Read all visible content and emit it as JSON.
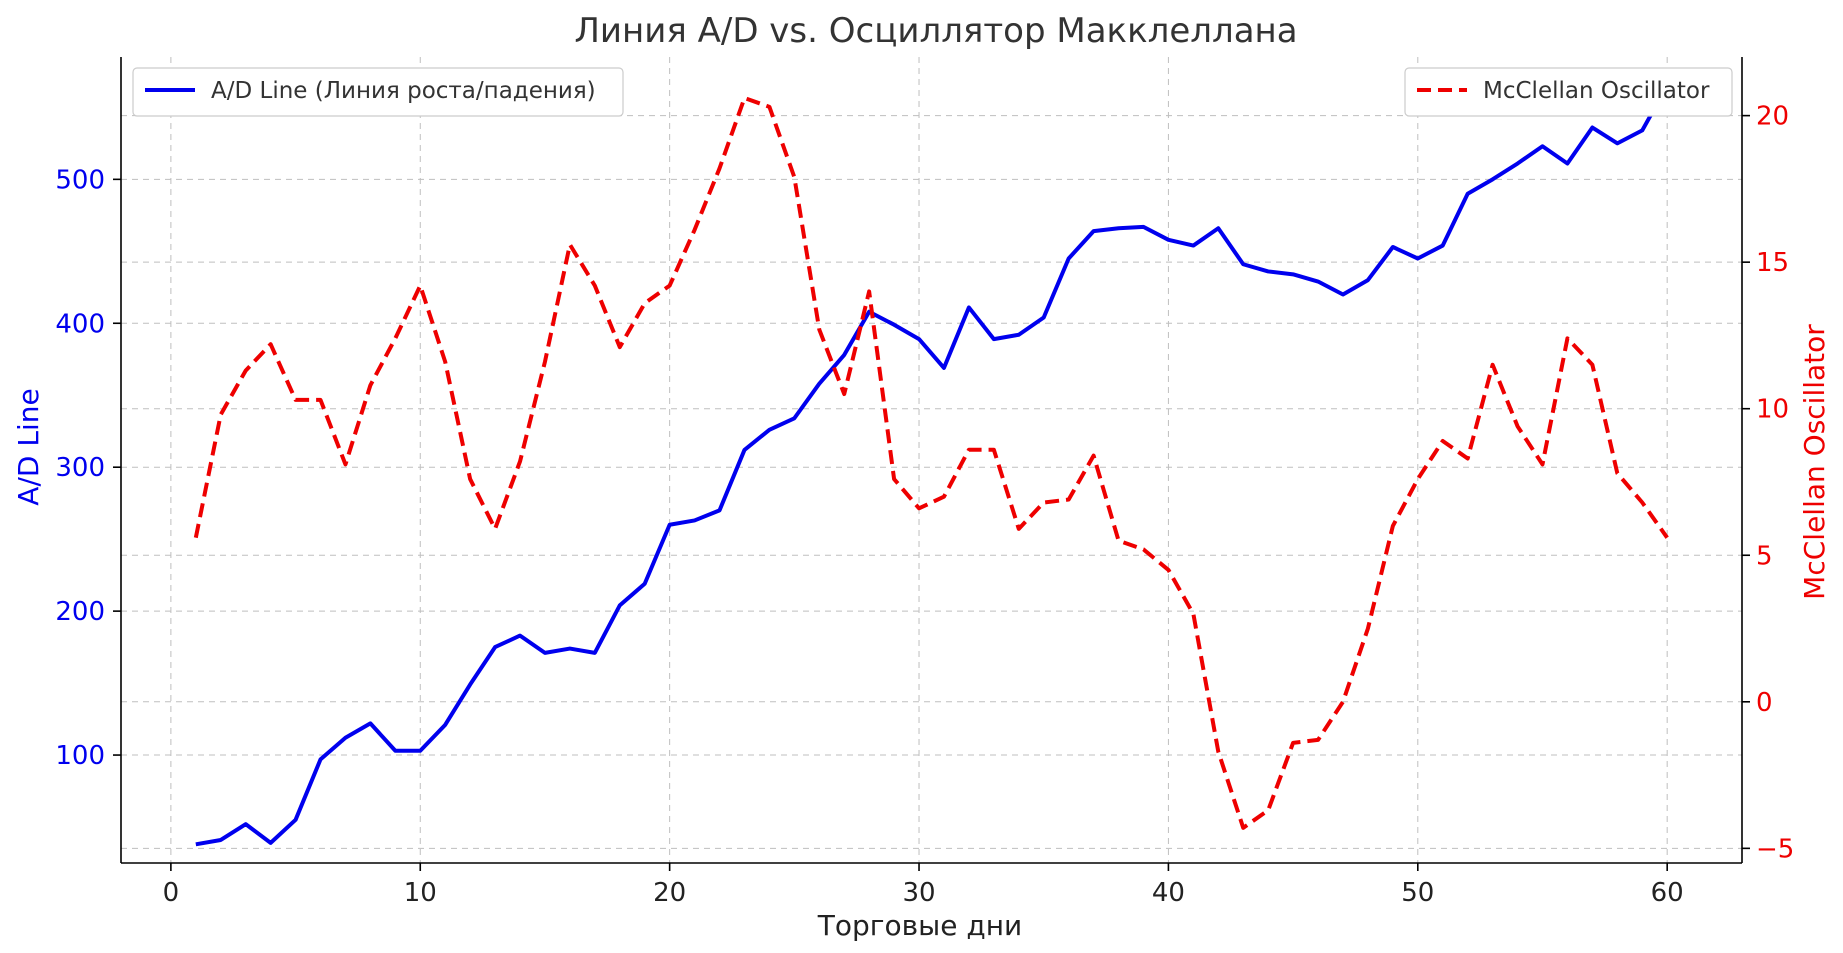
{
  "chart_data": {
    "type": "line",
    "title": "Линия A/D vs. Осциллятор Макклеллана",
    "xlabel": "Торговые дни",
    "ylabel_left": "A/D Line",
    "ylabel_right": "McClellan Oscillator",
    "xlim": [
      -2,
      63
    ],
    "ylim_left": [
      25,
      585
    ],
    "ylim_right": [
      -5.5,
      22
    ],
    "x_ticks": [
      0,
      10,
      20,
      30,
      40,
      50,
      60
    ],
    "y_left_ticks": [
      100,
      200,
      300,
      400,
      500
    ],
    "y_right_ticks": [
      -5,
      0,
      5,
      10,
      15,
      20
    ],
    "grid": true,
    "colors": {
      "left_axis": "#0000ee",
      "right_axis": "#ee0000"
    },
    "x": [
      1,
      2,
      3,
      4,
      5,
      6,
      7,
      8,
      9,
      10,
      11,
      12,
      13,
      14,
      15,
      16,
      17,
      18,
      19,
      20,
      21,
      22,
      23,
      24,
      25,
      26,
      27,
      28,
      29,
      30,
      31,
      32,
      33,
      34,
      35,
      36,
      37,
      38,
      39,
      40,
      41,
      42,
      43,
      44,
      45,
      46,
      47,
      48,
      49,
      50,
      51,
      52,
      53,
      54,
      55,
      56,
      57,
      58,
      59,
      60
    ],
    "series": [
      {
        "name": "A/D Line (Линия роста/падения)",
        "axis": "left",
        "color": "#0000ee",
        "style": "solid",
        "legend": "top-left",
        "values": [
          38,
          41,
          52,
          39,
          55,
          97,
          112,
          122,
          103,
          103,
          121,
          149,
          175,
          183,
          171,
          174,
          171,
          204,
          219,
          260,
          263,
          270,
          312,
          326,
          334,
          358,
          378,
          408,
          399,
          389,
          369,
          411,
          389,
          392,
          404,
          445,
          464,
          466,
          467,
          458,
          454,
          466,
          441,
          436,
          434,
          429,
          420,
          430,
          453,
          445,
          454,
          490,
          500,
          511,
          523,
          511,
          536,
          525,
          534,
          565
        ]
      },
      {
        "name": "McClellan Oscillator",
        "axis": "right",
        "color": "#ee0000",
        "style": "dashed",
        "legend": "top-right",
        "values": [
          5.6,
          9.8,
          11.3,
          12.2,
          10.3,
          10.3,
          8.1,
          10.8,
          12.4,
          14.2,
          11.6,
          7.6,
          5.9,
          8.2,
          11.6,
          15.6,
          14.2,
          12.1,
          13.6,
          14.2,
          16.1,
          18.2,
          20.6,
          20.3,
          17.9,
          12.7,
          10.5,
          14.0,
          7.6,
          6.6,
          7.0,
          8.6,
          8.6,
          5.9,
          6.8,
          6.9,
          8.4,
          5.5,
          5.2,
          4.5,
          3.0,
          -1.7,
          -4.3,
          -3.7,
          -1.4,
          -1.3,
          0.0,
          2.5,
          6.0,
          7.6,
          8.9,
          8.3,
          11.5,
          9.4,
          8.1,
          12.4,
          11.5,
          7.8,
          6.8,
          5.6
        ]
      }
    ]
  }
}
